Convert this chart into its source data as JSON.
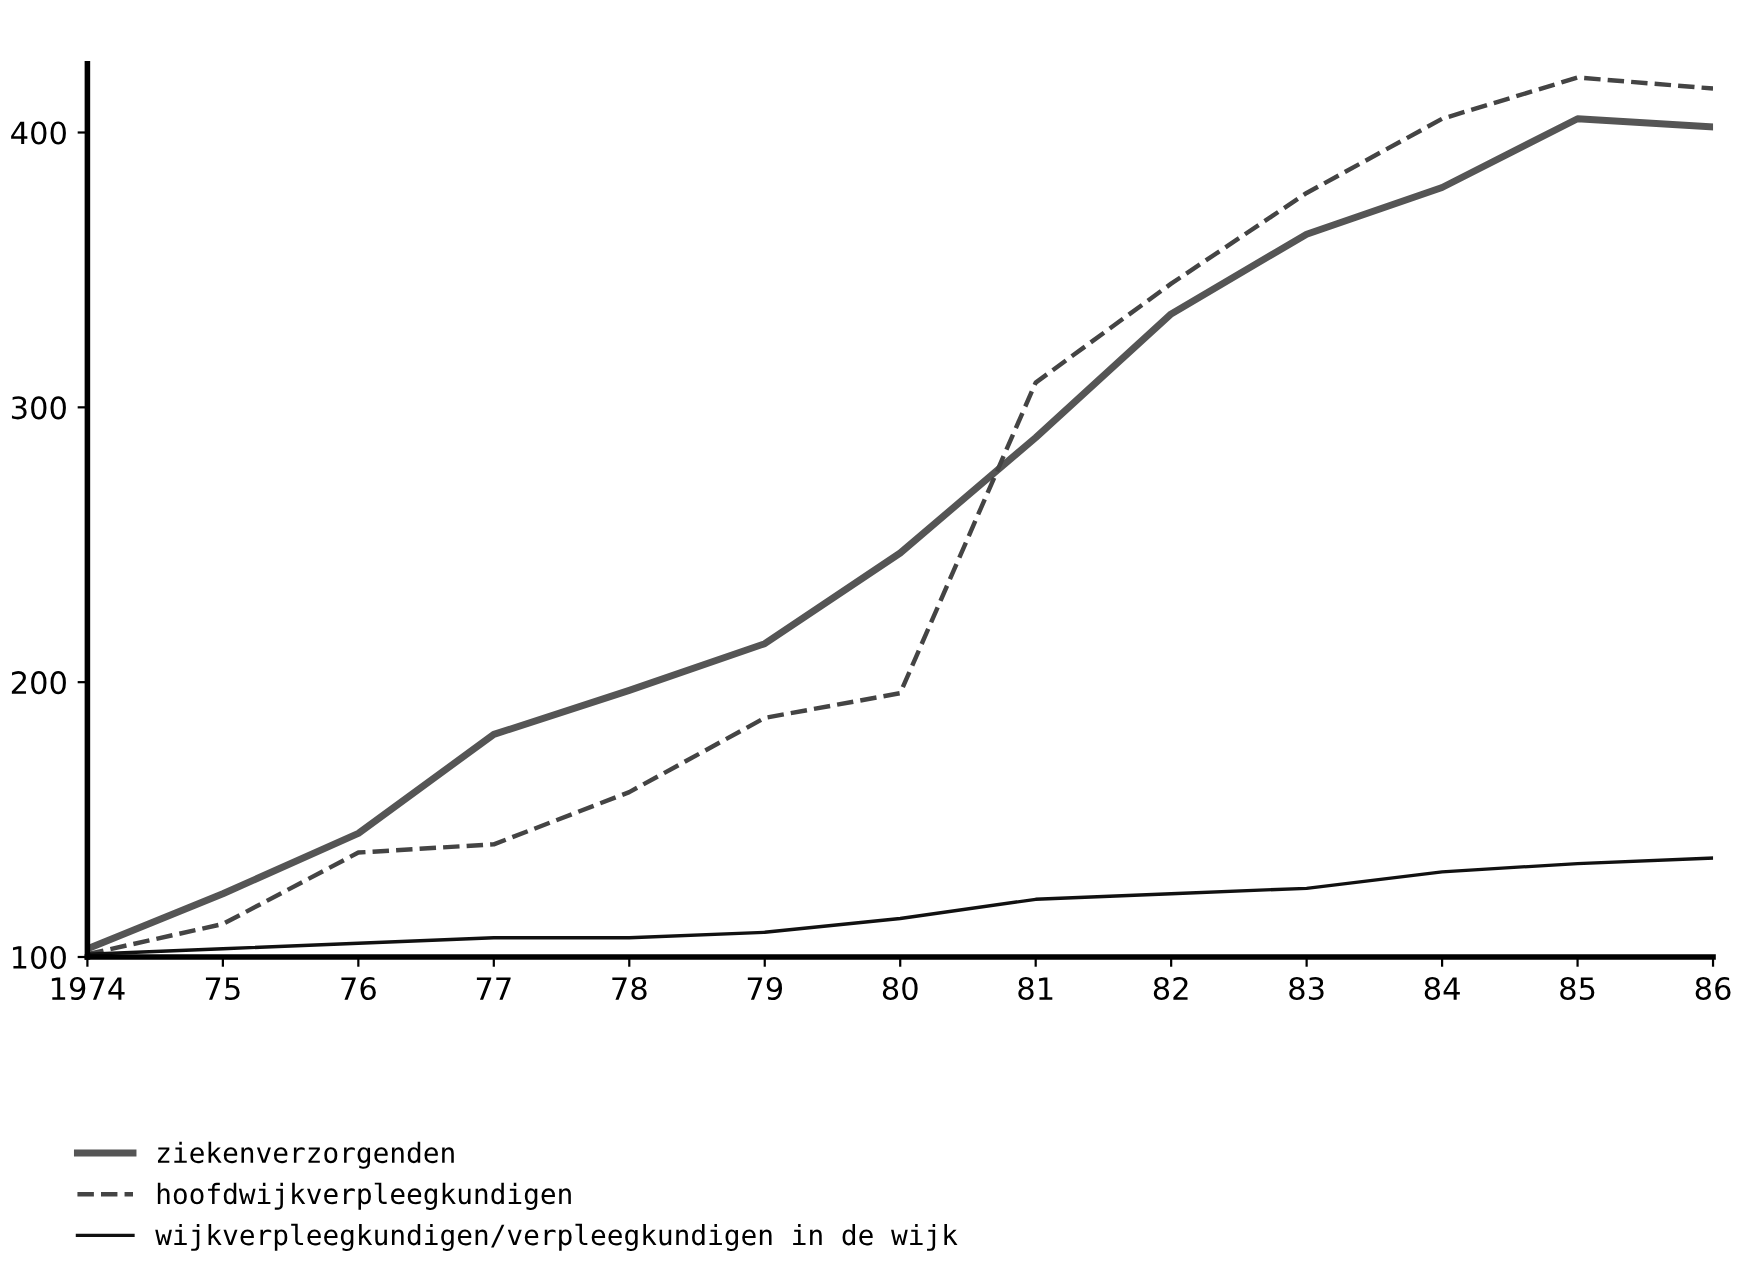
{
  "chart_data": {
    "type": "line",
    "categories": [
      "1974",
      "75",
      "76",
      "77",
      "78",
      "79",
      "80",
      "81",
      "82",
      "83",
      "84",
      "85",
      "86"
    ],
    "series": [
      {
        "name": "ziekenverzorgenden",
        "color": "#555555",
        "line_style": "solid",
        "values": [
          103,
          123,
          145,
          181,
          197,
          214,
          247,
          289,
          334,
          363,
          380,
          405,
          402
        ]
      },
      {
        "name": "hoofdwijkverpleegkundigen",
        "color": "#444444",
        "line_style": "dashed",
        "values": [
          101,
          112,
          138,
          141,
          160,
          187,
          196,
          309,
          345,
          378,
          405,
          420,
          416
        ]
      },
      {
        "name": "wijkverpleegkundigen/verpleegkundigen in de wijk",
        "color": "#111111",
        "line_style": "solid",
        "values": [
          101,
          103,
          105,
          107,
          107,
          109,
          114,
          121,
          123,
          125,
          131,
          134,
          136
        ]
      }
    ],
    "ylim": [
      100,
      425
    ],
    "yticks": [
      100,
      200,
      300,
      400
    ],
    "grid": false,
    "legend": "bottom left",
    "marker": "none"
  }
}
